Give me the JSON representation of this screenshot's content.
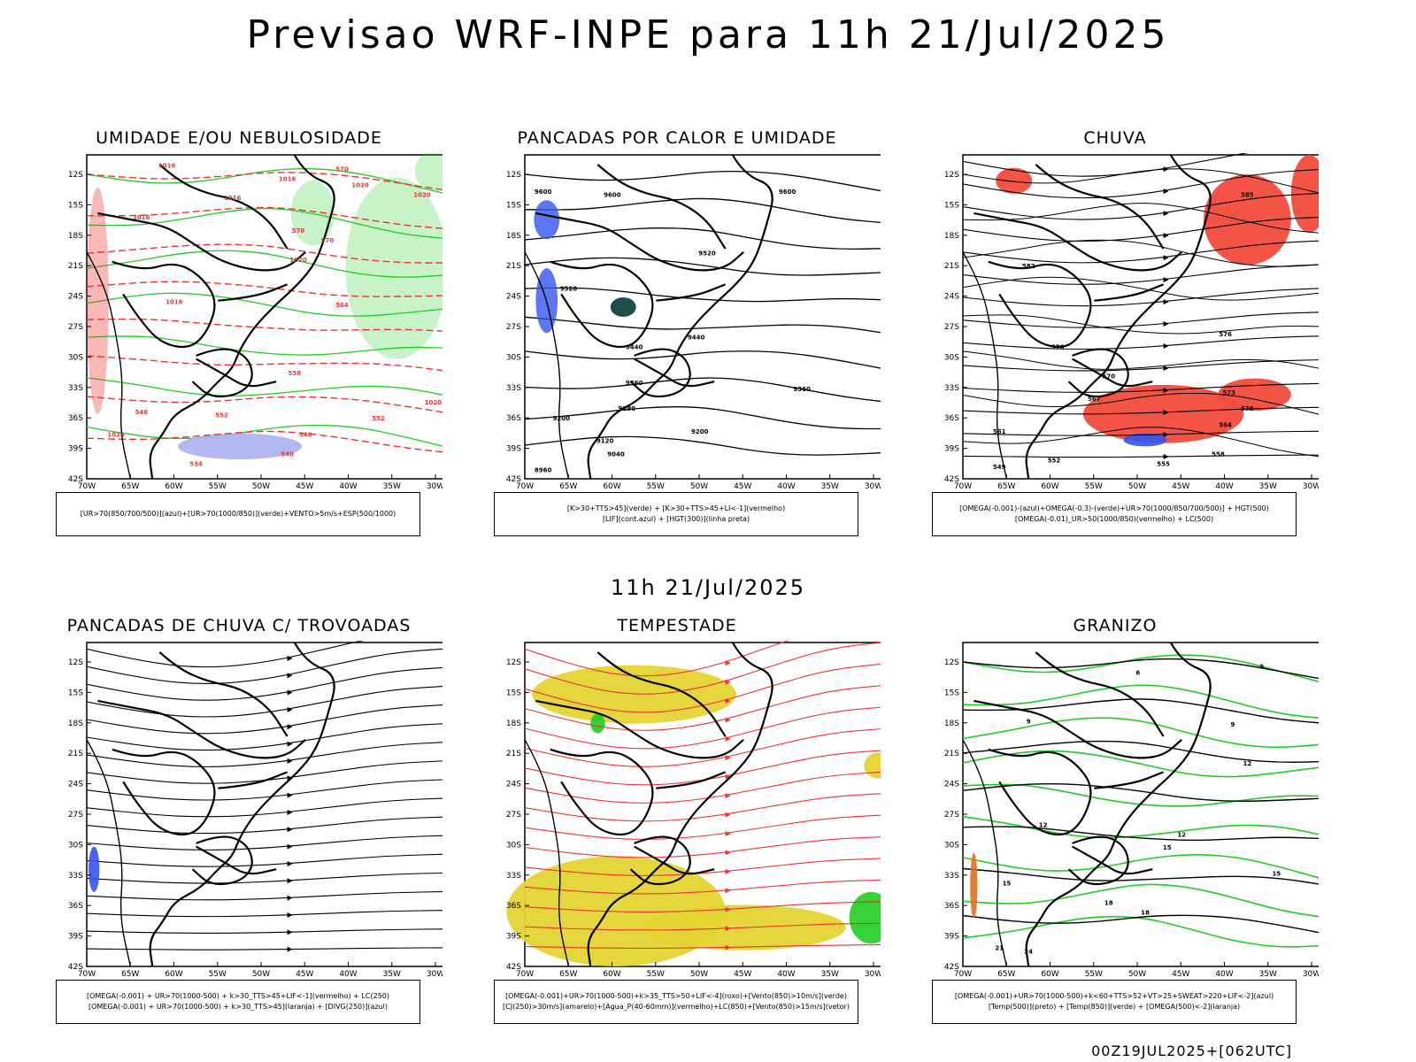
{
  "header": {
    "title": "Previsao WRF-INPE  para 11h 21/Jul/2025",
    "mid_title": "11h 21/Jul/2025",
    "footer": "00Z19JUL2025+[062UTC]"
  },
  "axes": {
    "lat_labels": [
      "12S",
      "15S",
      "18S",
      "21S",
      "24S",
      "27S",
      "30S",
      "33S",
      "36S",
      "39S",
      "42S"
    ],
    "lon_labels": [
      "70W",
      "65W",
      "60W",
      "55W",
      "50W",
      "45W",
      "40W",
      "35W",
      "30W"
    ]
  },
  "colors": {
    "background": "#ffffff",
    "contour_black": "#000000",
    "humidity_green": "#22cc22",
    "red_dashed": "#ee3333",
    "blue_area": "#3355ee",
    "lavender_fill": "#aab0f0",
    "red_fill": "#f24b3c",
    "yellow_fill": "#e3d432",
    "dark_teal": "#1e4d4a",
    "orange": "#e07020"
  },
  "panels": [
    {
      "title": "UMIDADE E/OU NEBULOSIDADE",
      "legend": [
        "[UR>70(850/700/500)](azul)+[UR>70(1000/850)](verde)+VENTO>5m/s+ESP(500/1000)"
      ],
      "contour_labels": [
        "1016",
        "1016",
        "1016",
        "1016",
        "1016",
        "1020",
        "1020",
        "1020",
        "1020",
        "1024",
        "570",
        "570",
        "570",
        "564",
        "558",
        "552",
        "552",
        "546",
        "546",
        "540",
        "534"
      ]
    },
    {
      "title": "PANCADAS POR CALOR E UMIDADE",
      "legend": [
        "[K>30+TTS>45](verde) + [K>30+TTS>45+LI<-1](vermelho)",
        "[LIF](cont.azul) + [HGT(300)](linha preta)"
      ],
      "contour_labels": [
        "9600",
        "9600",
        "9600",
        "9520",
        "9520",
        "9440",
        "9440",
        "9360",
        "9360",
        "9280",
        "9200",
        "9200",
        "9120",
        "9040",
        "8960"
      ]
    },
    {
      "title": "CHUVA",
      "legend": [
        "[OMEGA(-0.001)-(azul)+OMEGA(-0.3)-(verde)+UR>70(1000/850/700/500)] + HGT(500)",
        "[OMEGA(-0.01)_UR>50(1000/850)(vermelho) + LC(500)"
      ],
      "contour_labels": [
        "585",
        "582",
        "576",
        "576",
        "573",
        "570",
        "570",
        "567",
        "564",
        "561",
        "558",
        "555",
        "552",
        "549"
      ]
    },
    {
      "title": "PANCADAS DE CHUVA C/ TROVOADAS",
      "legend": [
        "[OMEGA(-0.001) + UR>70(1000-500) + k>30_TTS>45+LIF<-1](vermelho) + LC(250)",
        "[OMEGA(-0.001) + UR>70(1000-500) + k>30_TTS>45](laranja) + [DIVG(250)](azul)"
      ],
      "contour_labels": []
    },
    {
      "title": "TEMPESTADE",
      "legend": [
        "[OMEGA(-0.001)+UR>70(1000-500)+k>35_TTS>50+LIF<-4](roxo)+[Vento(850)>10m/s](verde)",
        "[CJ(250)>30m/s](amarelo)+[Agua_P(40-60mm)](vermelho)+LC(850)+[Vento(850)>15m/s](vetor)"
      ],
      "contour_labels": []
    },
    {
      "title": "GRANIZO",
      "legend": [
        "[OMEGA(-0.001)+UR>70(1000-500)+k<60+TTS>52+VT>25+SWEAT>220+LIF<-2](azul)",
        "[Temp(500)](preto) + [Temp(850)](verde) + [OMEGA(500)<-2](laranja)"
      ],
      "contour_labels": [
        "6",
        "6",
        "9",
        "9",
        "12",
        "12",
        "12",
        "15",
        "15",
        "15",
        "18",
        "18",
        "21",
        "24"
      ]
    }
  ]
}
